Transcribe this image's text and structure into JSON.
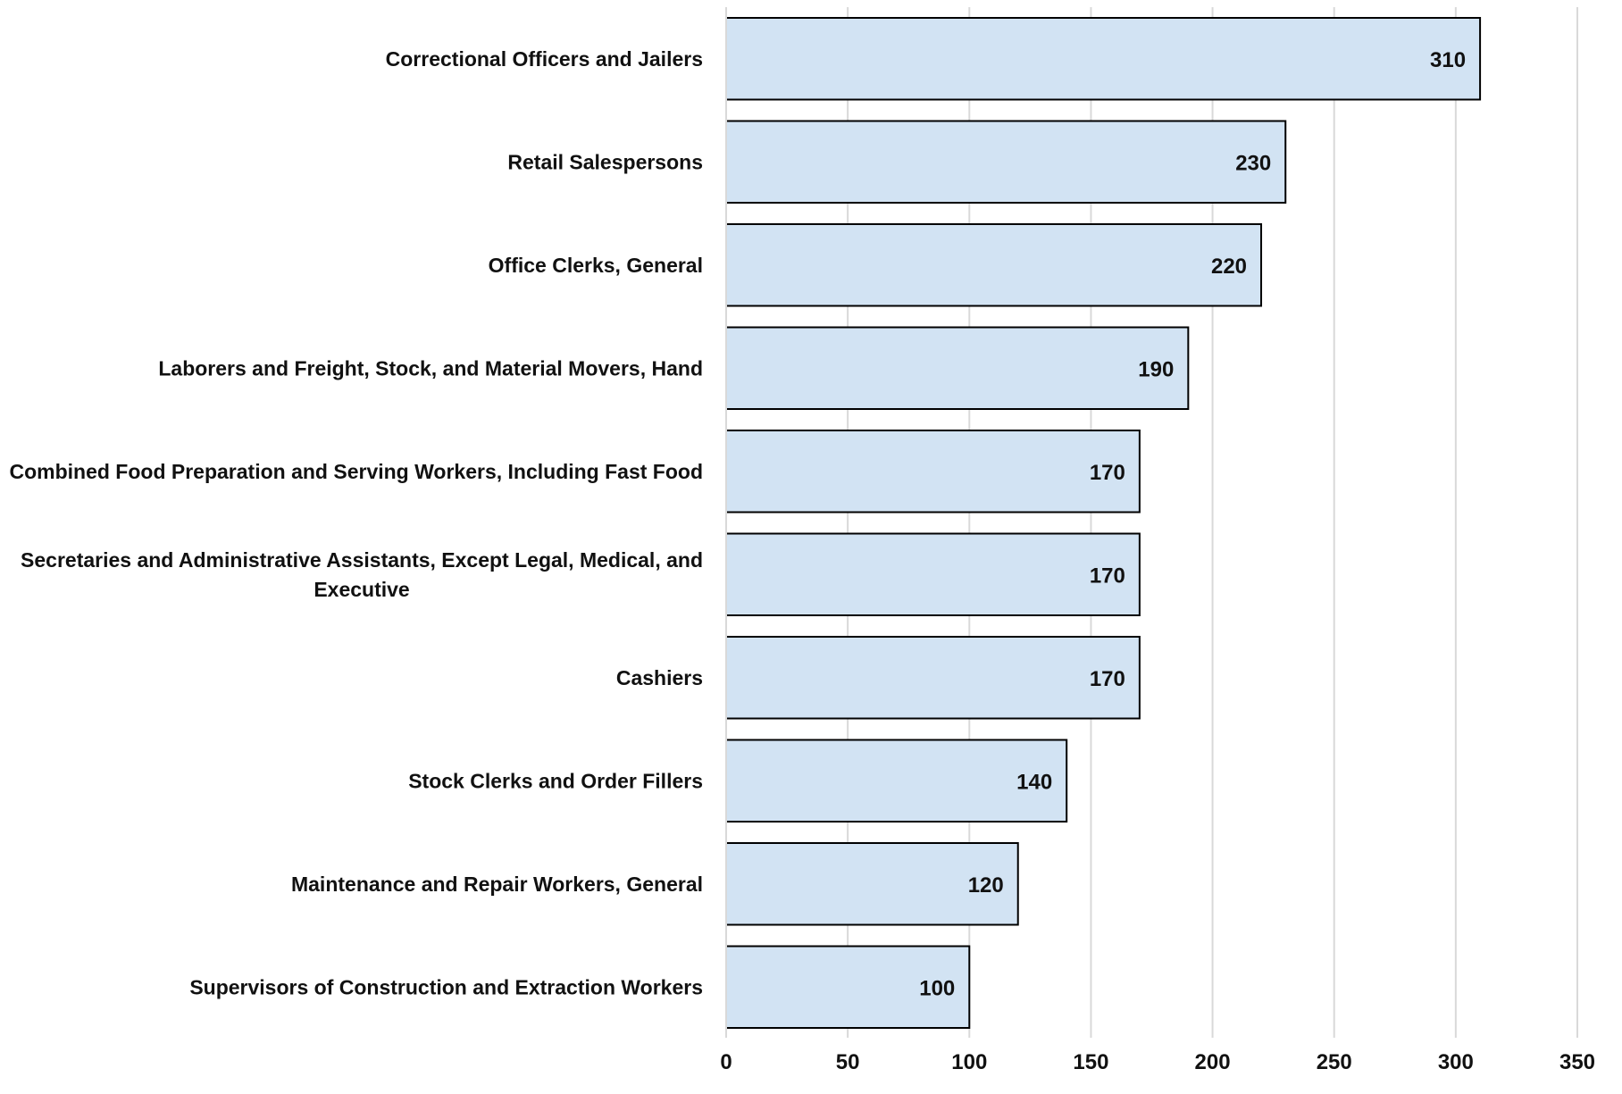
{
  "chart_data": {
    "type": "bar",
    "orientation": "horizontal",
    "categories": [
      [
        "Correctional Officers and Jailers"
      ],
      [
        "Retail Salespersons"
      ],
      [
        "Office Clerks, General"
      ],
      [
        "Laborers and Freight, Stock, and Material Movers, Hand"
      ],
      [
        "Combined Food Preparation and Serving Workers, Including Fast Food"
      ],
      [
        "Secretaries and Administrative Assistants, Except Legal, Medical, and",
        "Executive"
      ],
      [
        "Cashiers"
      ],
      [
        "Stock Clerks and Order Fillers"
      ],
      [
        "Maintenance and Repair Workers, General"
      ],
      [
        "Supervisors of Construction and Extraction Workers"
      ]
    ],
    "values": [
      310,
      230,
      220,
      190,
      170,
      170,
      170,
      140,
      120,
      100
    ],
    "data_labels": [
      "310",
      "230",
      "220",
      "190",
      "170",
      "170",
      "170",
      "140",
      "120",
      "100"
    ],
    "x_ticks": [
      "0",
      "50",
      "100",
      "150",
      "200",
      "250",
      "300",
      "350"
    ],
    "xlim": [
      0,
      350
    ],
    "title": "",
    "xlabel": "",
    "ylabel": "",
    "grid": "vertical",
    "legend": "none",
    "colors": {
      "bar_fill": "#d2e3f3",
      "bar_stroke": "#000000",
      "grid": "#d9d9d9",
      "text": "#111111"
    }
  }
}
